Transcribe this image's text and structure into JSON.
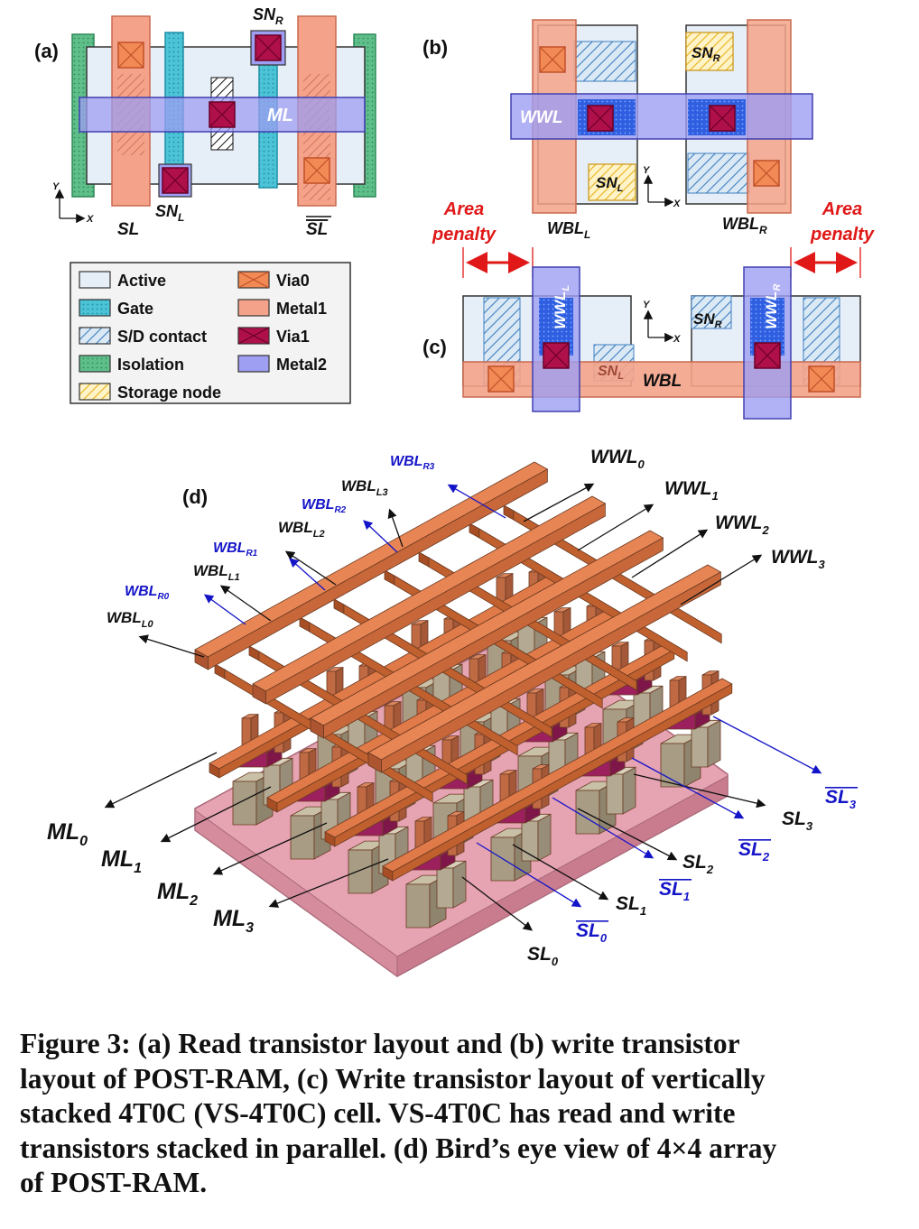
{
  "panels": {
    "a": "(a)",
    "b": "(b)",
    "c": "(c)",
    "d": "(d)"
  },
  "panel_a": {
    "labels": {
      "sn_r": "SN",
      "sn_r_sub": "R",
      "sn_l": "SN",
      "sn_l_sub": "L",
      "ml": "ML",
      "sl": "SL",
      "sl_bar": "SL",
      "axis_y": "Y",
      "axis_x": "X"
    }
  },
  "legend": {
    "items": [
      {
        "name": "Active",
        "color": "#e6eef7"
      },
      {
        "name": "Gate",
        "color": "#4cc3d6"
      },
      {
        "name": "S/D contact",
        "color": "#a9c9e4"
      },
      {
        "name": "Isolation",
        "color": "#5fbf8a"
      },
      {
        "name": "Storage node",
        "color": "#f5d66a"
      },
      {
        "name": "Via0",
        "color": "#f28a55"
      },
      {
        "name": "Metal1",
        "color": "#f4a38a"
      },
      {
        "name": "Via1",
        "color": "#b0104a"
      },
      {
        "name": "Metal2",
        "color": "#9e9ef2"
      }
    ]
  },
  "panel_b": {
    "labels": {
      "wwl": "WWL",
      "sn_r": "SN",
      "sn_r_sub": "R",
      "sn_l": "SN",
      "sn_l_sub": "L",
      "wbl_l": "WBL",
      "wbl_l_sub": "L",
      "wbl_r": "WBL",
      "wbl_r_sub": "R",
      "axis_y": "Y",
      "axis_x": "X"
    }
  },
  "panel_c": {
    "area_penalty": [
      "Area",
      "penalty"
    ],
    "labels": {
      "wwl_l": "WWL",
      "wwl_l_sub": "L",
      "wwl_r": "WWL",
      "wwl_r_sub": "R",
      "sn_r": "SN",
      "sn_r_sub": "R",
      "sn_l": "SN",
      "sn_l_sub": "L",
      "wbl": "WBL",
      "axis_y": "Y",
      "axis_x": "X"
    }
  },
  "panel_d": {
    "wwl": [
      {
        "t": "WWL",
        "s": "0"
      },
      {
        "t": "WWL",
        "s": "1"
      },
      {
        "t": "WWL",
        "s": "2"
      },
      {
        "t": "WWL",
        "s": "3"
      }
    ],
    "wbl_l": [
      {
        "t": "WBL",
        "s": "L0"
      },
      {
        "t": "WBL",
        "s": "L1"
      },
      {
        "t": "WBL",
        "s": "L2"
      },
      {
        "t": "WBL",
        "s": "L3"
      }
    ],
    "wbl_r": [
      {
        "t": "WBL",
        "s": "R0"
      },
      {
        "t": "WBL",
        "s": "R1"
      },
      {
        "t": "WBL",
        "s": "R2"
      },
      {
        "t": "WBL",
        "s": "R3"
      }
    ],
    "ml": [
      {
        "t": "ML",
        "s": "0"
      },
      {
        "t": "ML",
        "s": "1"
      },
      {
        "t": "ML",
        "s": "2"
      },
      {
        "t": "ML",
        "s": "3"
      }
    ],
    "sl": [
      {
        "t": "SL",
        "s": "0"
      },
      {
        "t": "SL",
        "s": "1"
      },
      {
        "t": "SL",
        "s": "2"
      },
      {
        "t": "SL",
        "s": "3"
      }
    ],
    "sl_bar": [
      {
        "t": "SL",
        "s": "0"
      },
      {
        "t": "SL",
        "s": "1"
      },
      {
        "t": "SL",
        "s": "2"
      },
      {
        "t": "SL",
        "s": "3"
      }
    ]
  },
  "caption": {
    "lines": [
      "Figure 3: (a) Read transistor layout and (b) write transistor",
      "layout of POST-RAM, (c) Write transistor layout of vertically",
      "stacked 4T0C (VS-4T0C) cell. VS-4T0C has read and write",
      "transistors stacked in parallel. (d) Bird’s eye view of 4×4 array",
      "of POST-RAM."
    ]
  }
}
